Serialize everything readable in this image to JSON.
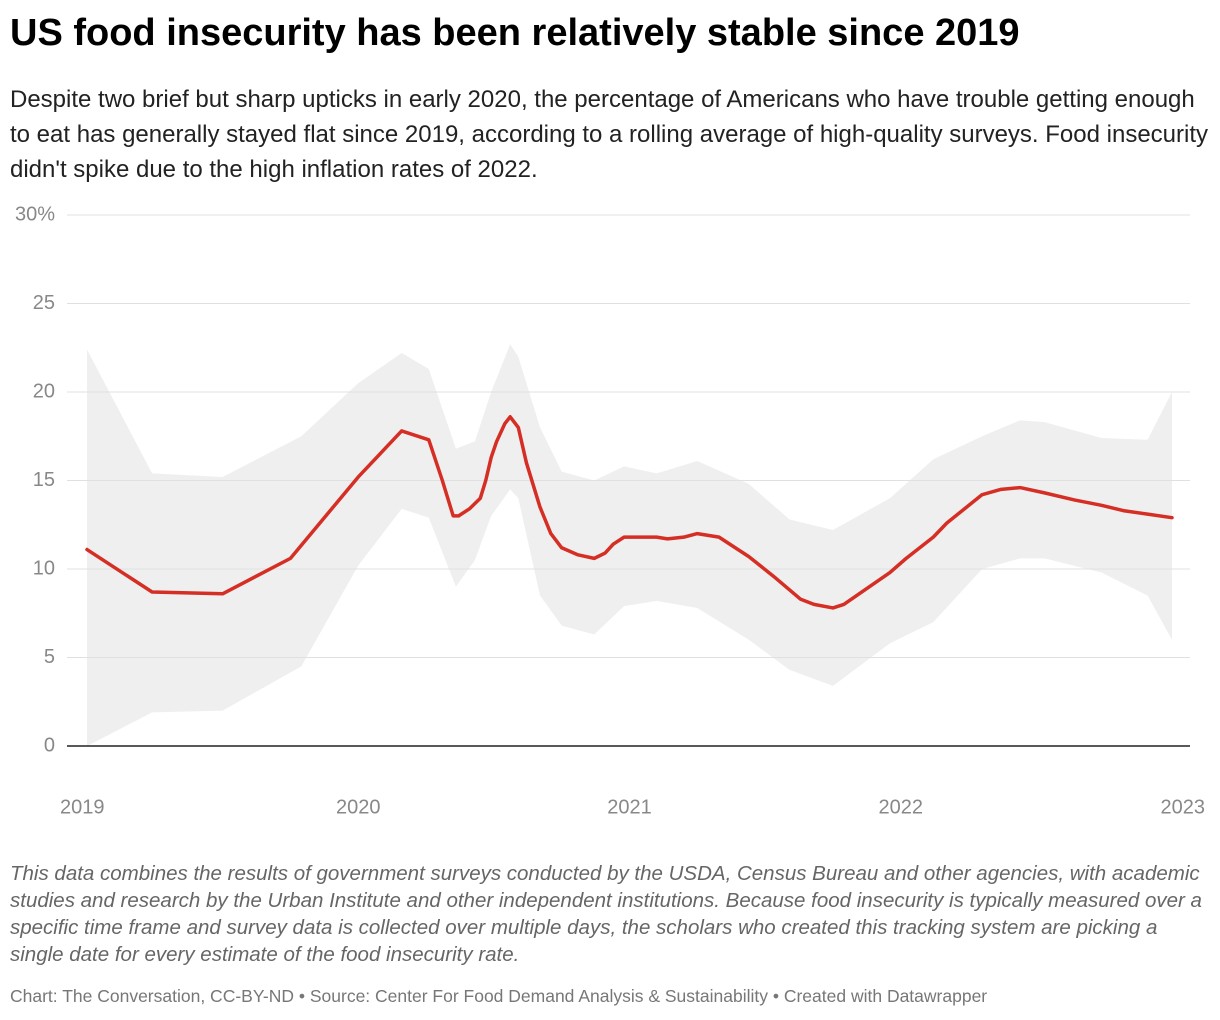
{
  "chart_data": {
    "type": "line",
    "title": "US food insecurity has been relatively stable since 2019",
    "subtitle": "Despite two brief but sharp upticks in early 2020, the percentage of Americans who have trouble getting enough to eat has generally stayed flat since 2019, according to a rolling average of high-quality surveys. Food insecurity didn't spike due to the high inflation rates of 2022.",
    "notes": "This data combines the results of government surveys conducted by the USDA, Census Bureau and other agencies, with academic studies and research by the Urban Institute and other independent institutions. Because food insecurity is typically measured over a specific time frame and survey data is collected over multiple days, the scholars who created this tracking system are picking a single date for every estimate of the food insecurity rate.",
    "source": "Chart: The Conversation, CC-BY-ND • Source: Center For Food Demand Analysis & Sustainability • Created with Datawrapper",
    "x": [
      2019.0,
      2019.24,
      2019.5,
      2019.75,
      2020.0,
      2020.16,
      2020.26,
      2020.31,
      2020.35,
      2020.37,
      2020.41,
      2020.45,
      2020.47,
      2020.49,
      2020.51,
      2020.54,
      2020.56,
      2020.59,
      2020.62,
      2020.67,
      2020.71,
      2020.75,
      2020.81,
      2020.87,
      2020.91,
      2020.94,
      2020.98,
      2021.1,
      2021.14,
      2021.2,
      2021.25,
      2021.33,
      2021.44,
      2021.53,
      2021.63,
      2021.68,
      2021.75,
      2021.79,
      2021.96,
      2022.02,
      2022.12,
      2022.17,
      2022.3,
      2022.37,
      2022.44,
      2022.53,
      2022.64,
      2022.74,
      2022.82,
      2022.91,
      2023.0
    ],
    "series": [
      {
        "color": "#d52f25",
        "values": [
          11.1,
          8.7,
          8.6,
          10.6,
          15.2,
          17.8,
          17.3,
          15,
          13,
          13,
          13.4,
          14,
          15,
          16.3,
          17.2,
          18.2,
          18.6,
          18,
          16,
          13.5,
          12,
          11.2,
          10.8,
          10.6,
          10.9,
          11.4,
          11.8,
          11.8,
          11.7,
          11.8,
          12,
          11.8,
          10.7,
          9.6,
          8.3,
          8,
          7.8,
          8,
          9.8,
          10.6,
          11.8,
          12.6,
          14.2,
          14.5,
          14.6,
          14.3,
          13.9,
          13.6,
          13.3,
          13.1,
          12.9
        ]
      }
    ],
    "band": {
      "color": "#efefef",
      "x": [
        2019.0,
        2019.24,
        2019.5,
        2019.79,
        2020.0,
        2020.16,
        2020.26,
        2020.36,
        2020.43,
        2020.49,
        2020.56,
        2020.59,
        2020.67,
        2020.75,
        2020.87,
        2020.98,
        2021.1,
        2021.25,
        2021.44,
        2021.59,
        2021.75,
        2021.96,
        2022.12,
        2022.3,
        2022.44,
        2022.53,
        2022.74,
        2022.91,
        2023.0
      ],
      "upper": [
        22.4,
        15.4,
        15.2,
        17.5,
        20.5,
        22.2,
        21.3,
        16.8,
        17.2,
        20,
        22.7,
        22,
        18,
        15.5,
        15,
        15.8,
        15.4,
        16.1,
        14.8,
        12.8,
        12.2,
        14,
        16.2,
        17.5,
        18.4,
        18.3,
        17.4,
        17.3,
        20
      ],
      "lower": [
        0,
        1.9,
        2,
        4.5,
        10.2,
        13.4,
        12.9,
        9,
        10.5,
        13,
        14.5,
        14,
        8.5,
        6.8,
        6.3,
        7.9,
        8.2,
        7.8,
        6,
        4.3,
        3.4,
        5.8,
        7,
        10,
        10.6,
        10.6,
        9.8,
        8.5,
        6
      ]
    },
    "xlim": [
      2019,
      2023
    ],
    "xticks": [
      2019,
      2020,
      2021,
      2022,
      2023
    ],
    "ylim": [
      0,
      30
    ],
    "yticks": [
      0,
      5,
      10,
      15,
      20,
      {
        "value": 25,
        "label": "25"
      },
      {
        "value": 30,
        "label": "30%"
      }
    ],
    "grid": true
  }
}
